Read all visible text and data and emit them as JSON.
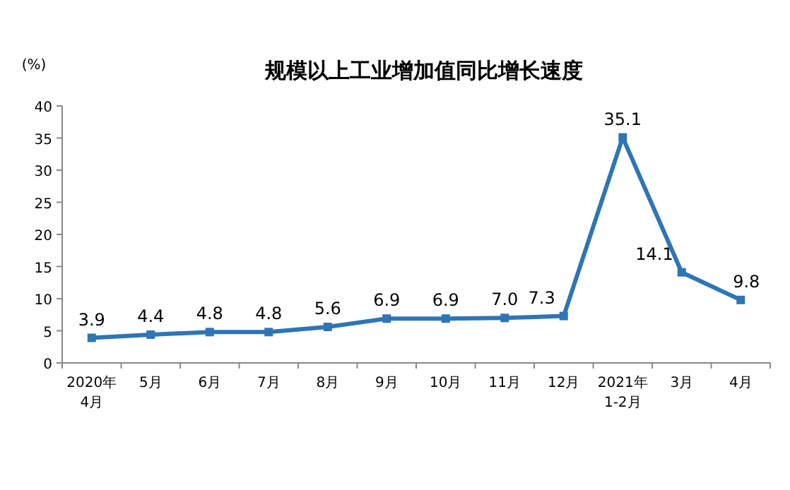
{
  "chart_data": {
    "type": "line",
    "title": "规模以上工业增加值同比增长速度",
    "ylabel": "(%)",
    "categories": [
      "2020年\n4月",
      "5月",
      "6月",
      "7月",
      "8月",
      "9月",
      "10月",
      "11月",
      "12月",
      "2021年\n1-2月",
      "3月",
      "4月"
    ],
    "series": [
      {
        "color": "#2e75b6",
        "values": [
          3.9,
          4.4,
          4.8,
          4.8,
          5.6,
          6.9,
          6.9,
          7.0,
          7.3,
          35.1,
          14.1,
          9.8
        ],
        "value_labels": [
          "3.9",
          "4.4",
          "4.8",
          "4.8",
          "5.6",
          "6.9",
          "6.9",
          "7.0",
          "7.3",
          "35.1",
          "14.1",
          "9.8"
        ]
      }
    ],
    "ylim": [
      0,
      40
    ],
    "yticks": [
      0,
      5,
      10,
      15,
      20,
      25,
      30,
      35,
      40
    ],
    "marker": "square"
  }
}
